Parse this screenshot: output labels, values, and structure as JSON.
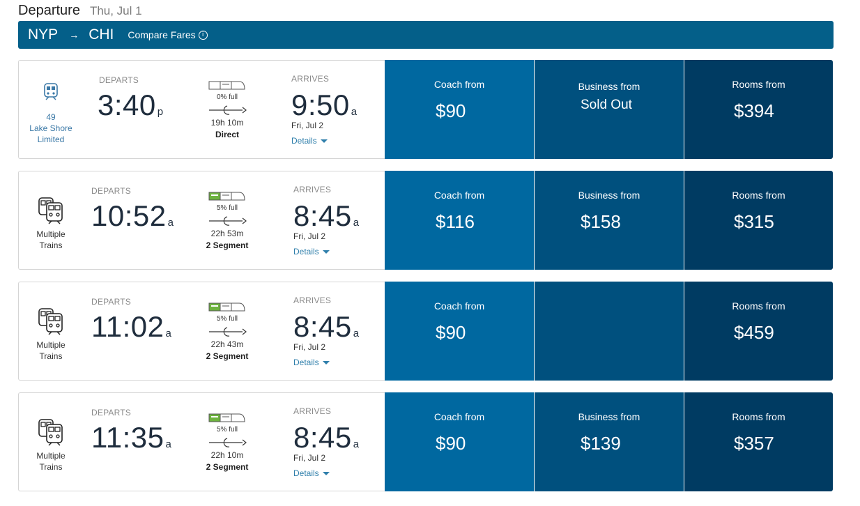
{
  "header": {
    "title": "Departure",
    "date": "Thu, Jul 1"
  },
  "route": {
    "origin": "NYP",
    "arrow": "→",
    "destination": "CHI",
    "compare_label": "Compare Fares",
    "info_glyph": "i"
  },
  "labels": {
    "departs": "DEPARTS",
    "arrives": "ARRIVES",
    "details": "Details"
  },
  "colors": {
    "route_bar": "#045f89",
    "coach": "#0068a0",
    "business": "#00507e",
    "rooms": "#003b62",
    "occupancy_fill": "#6db33f"
  },
  "trips": [
    {
      "train_icon": "single-train-icon",
      "train_number": "49",
      "train_name_1": "Lake Shore",
      "train_name_2": "Limited",
      "depart_time": "3:40",
      "depart_ampm": "p",
      "occupancy": "0% full",
      "occupancy_level": 0,
      "duration": "19h 10m",
      "segments": "Direct",
      "arrive_time": "9:50",
      "arrive_ampm": "a",
      "arrive_date": "Fri, Jul 2",
      "coach_label": "Coach from",
      "coach_price": "$90",
      "business_label": "Business from",
      "business_price": "Sold Out",
      "rooms_label": "Rooms from",
      "rooms_price": "$394"
    },
    {
      "train_icon": "multiple-trains-icon",
      "train_number": "",
      "train_name_1": "Multiple",
      "train_name_2": "Trains",
      "depart_time": "10:52",
      "depart_ampm": "a",
      "occupancy": "5% full",
      "occupancy_level": 0.05,
      "duration": "22h 53m",
      "segments": "2 Segment",
      "arrive_time": "8:45",
      "arrive_ampm": "a",
      "arrive_date": "Fri, Jul 2",
      "coach_label": "Coach from",
      "coach_price": "$116",
      "business_label": "Business from",
      "business_price": "$158",
      "rooms_label": "Rooms from",
      "rooms_price": "$315"
    },
    {
      "train_icon": "multiple-trains-icon",
      "train_number": "",
      "train_name_1": "Multiple",
      "train_name_2": "Trains",
      "depart_time": "11:02",
      "depart_ampm": "a",
      "occupancy": "5% full",
      "occupancy_level": 0.05,
      "duration": "22h 43m",
      "segments": "2 Segment",
      "arrive_time": "8:45",
      "arrive_ampm": "a",
      "arrive_date": "Fri, Jul 2",
      "coach_label": "Coach from",
      "coach_price": "$90",
      "business_label": "",
      "business_price": "",
      "rooms_label": "Rooms from",
      "rooms_price": "$459"
    },
    {
      "train_icon": "multiple-trains-icon",
      "train_number": "",
      "train_name_1": "Multiple",
      "train_name_2": "Trains",
      "depart_time": "11:35",
      "depart_ampm": "a",
      "occupancy": "5% full",
      "occupancy_level": 0.05,
      "duration": "22h 10m",
      "segments": "2 Segment",
      "arrive_time": "8:45",
      "arrive_ampm": "a",
      "arrive_date": "Fri, Jul 2",
      "coach_label": "Coach from",
      "coach_price": "$90",
      "business_label": "Business from",
      "business_price": "$139",
      "rooms_label": "Rooms from",
      "rooms_price": "$357"
    }
  ]
}
